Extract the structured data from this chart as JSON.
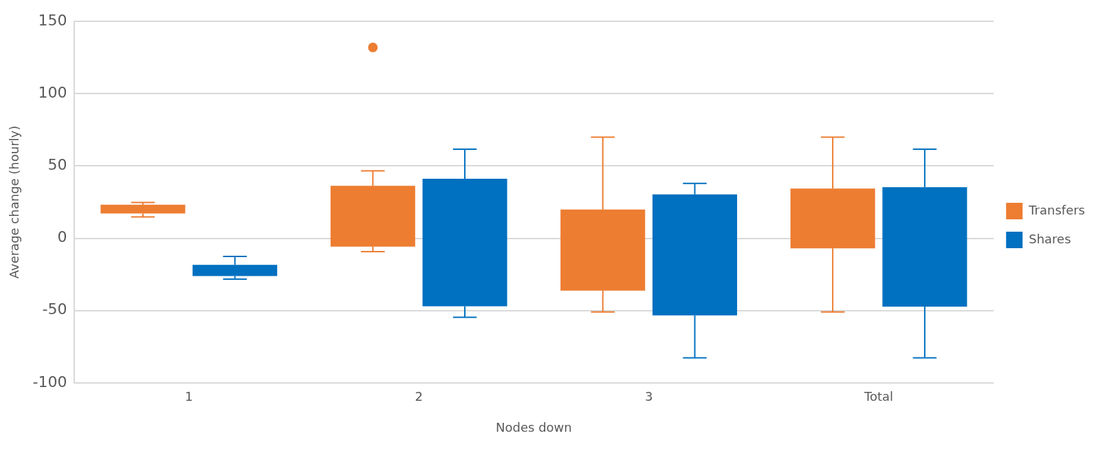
{
  "chart_data": {
    "type": "box",
    "xlabel": "Nodes down",
    "ylabel": "Average change (hourly)",
    "categories": [
      "1",
      "2",
      "3",
      "Total"
    ],
    "ylim": [
      -100,
      150
    ],
    "yticks": [
      -100,
      -50,
      0,
      50,
      100,
      150
    ],
    "grid": "y",
    "legend": "right",
    "series": [
      {
        "name": "Transfers",
        "color": "#ed7d31",
        "boxes": [
          {
            "low": 14.8,
            "q1": 17.2,
            "q3": 23.2,
            "high": 24.8
          },
          {
            "low": -9.3,
            "q1": -5.8,
            "q3": 36.3,
            "high": 46.7,
            "outliers": [
              132
            ]
          },
          {
            "low": -51,
            "q1": -36.2,
            "q3": 19.9,
            "high": 70
          },
          {
            "low": -51,
            "q1": -7,
            "q3": 34.4,
            "high": 70
          }
        ]
      },
      {
        "name": "Shares",
        "color": "#0070c0",
        "boxes": [
          {
            "low": -28.3,
            "q1": -26.1,
            "q3": -18.4,
            "high": -12.6
          },
          {
            "low": -54.7,
            "q1": -47.1,
            "q3": 41.2,
            "high": 61.6
          },
          {
            "low": -82.7,
            "q1": -53.4,
            "q3": 30.4,
            "high": 38
          },
          {
            "low": -82.7,
            "q1": -47.3,
            "q3": 35.3,
            "high": 61.6
          }
        ]
      }
    ]
  }
}
